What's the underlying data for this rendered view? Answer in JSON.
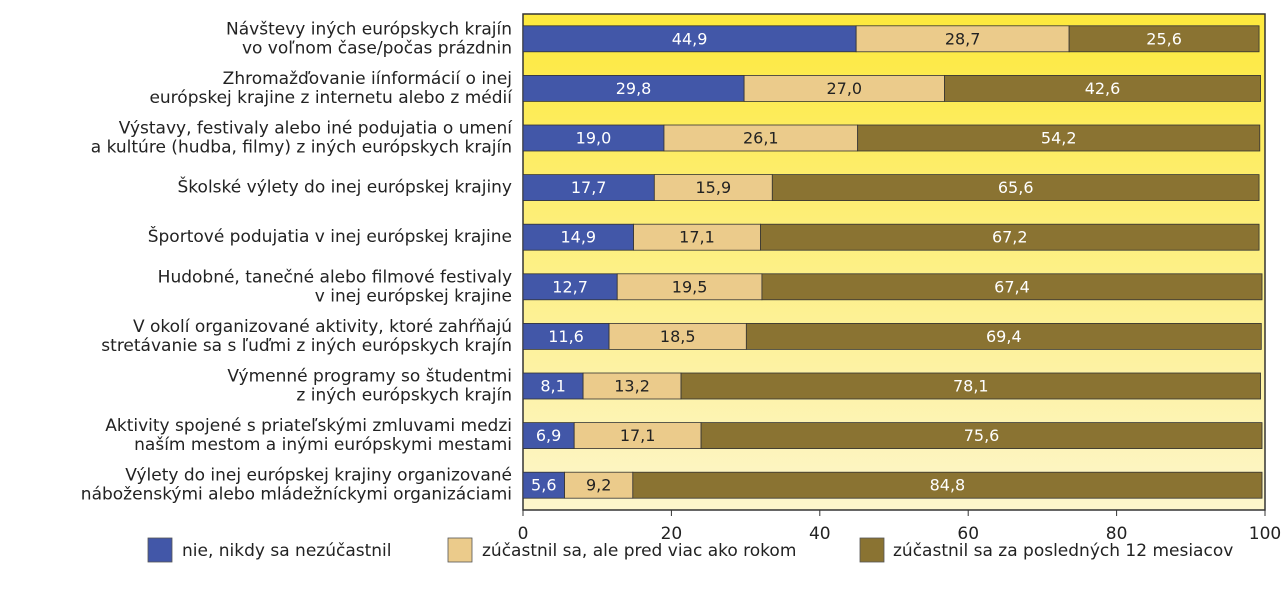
{
  "chart_data": {
    "type": "stacked-bar-horizontal",
    "categories": [
      [
        "Návštevy iných európskych krajín",
        "vo voľnom čase/počas prázdnin"
      ],
      [
        "Zhromažďovanie iínformácií o inej",
        "európskej krajine z internetu alebo z médií"
      ],
      [
        "Výstavy, festivaly alebo iné podujatia o umení",
        "a kultúre (hudba, filmy) z iných európskych krajín"
      ],
      [
        "Školské výlety do inej európskej krajiny"
      ],
      [
        "Športové podujatia v inej európskej krajine"
      ],
      [
        "Hudobné, tanečné alebo filmové festivaly",
        "v inej európskej krajine"
      ],
      [
        "V okolí organizované aktivity, ktoré zahŕňajú",
        "stretávanie sa s ľuďmi z iných európskych krajín"
      ],
      [
        "Výmenné programy so študentmi",
        "z iných európskych krajín"
      ],
      [
        "Aktivity spojené s priateľskými zmluvami medzi",
        "naším mestom a inými európskymi mestami"
      ],
      [
        "Výlety do inej európskej krajiny organizované",
        "náboženskými alebo mládežníckymi organizáciami"
      ]
    ],
    "series": [
      {
        "name": "nie, nikdy sa nezúčastnil",
        "color": "#4257a8",
        "values": [
          44.9,
          29.8,
          19.0,
          17.7,
          14.9,
          12.7,
          11.6,
          8.1,
          6.9,
          5.6
        ],
        "value_labels": [
          "44,9",
          "29,8",
          "19,0",
          "17,7",
          "14,9",
          "12,7",
          "11,6",
          "8,1",
          "6,9",
          "5,6"
        ]
      },
      {
        "name": "zúčastnil sa, ale pred viac ako rokom",
        "color": "#ebcb8b",
        "values": [
          28.7,
          27.0,
          26.1,
          15.9,
          17.1,
          19.5,
          18.5,
          13.2,
          17.1,
          9.2
        ],
        "value_labels": [
          "28,7",
          "27,0",
          "26,1",
          "15,9",
          "17,1",
          "19,5",
          "18,5",
          "13,2",
          "17,1",
          "9,2"
        ]
      },
      {
        "name": "zúčastnil sa za posledných 12 mesiacov",
        "color": "#8a7332",
        "values": [
          25.6,
          42.6,
          54.2,
          65.6,
          67.2,
          67.4,
          69.4,
          78.1,
          75.6,
          84.8
        ],
        "value_labels": [
          "25,6",
          "42,6",
          "54,2",
          "65,6",
          "67,2",
          "67,4",
          "69,4",
          "78,1",
          "75,6",
          "84,8"
        ]
      }
    ],
    "xlim": [
      0,
      100
    ],
    "xticks": [
      0,
      20,
      40,
      60,
      80,
      100
    ]
  }
}
